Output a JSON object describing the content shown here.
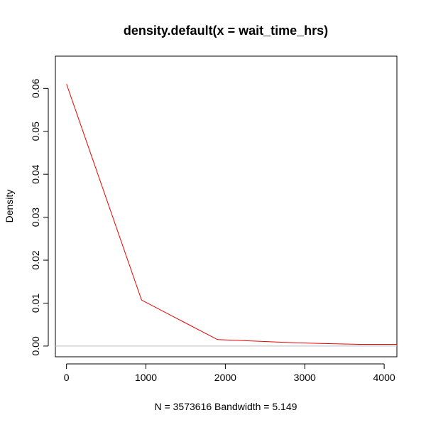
{
  "chart_data": {
    "type": "line",
    "title": "density.default(x = wait_time_hrs)",
    "subtitle": "N = 3573616   Bandwidth = 5.149",
    "xlabel": "",
    "ylabel": "Density",
    "xlim": [
      -140,
      4160
    ],
    "ylim": [
      -0.0025,
      0.0675
    ],
    "x_ticks": [
      0,
      1000,
      2000,
      3000,
      4000
    ],
    "x_tick_labels": [
      "0",
      "1000",
      "2000",
      "3000",
      "4000"
    ],
    "y_ticks": [
      0.0,
      0.01,
      0.02,
      0.03,
      0.04,
      0.05,
      0.06
    ],
    "y_tick_labels": [
      "0.00",
      "0.01",
      "0.02",
      "0.03",
      "0.04",
      "0.05",
      "0.06"
    ],
    "grid": false,
    "legend": "none",
    "baseline": 0,
    "colors": {
      "line": "#ee0000",
      "baseline": "#bebebe",
      "axes": "#000000"
    },
    "series": [
      {
        "x": [
          0,
          945,
          1900,
          2850,
          3200,
          3700,
          4160
        ],
        "y": [
          0.061,
          0.0107,
          0.0015,
          0.0008,
          0.0006,
          0.0004,
          0.0004
        ]
      }
    ]
  }
}
